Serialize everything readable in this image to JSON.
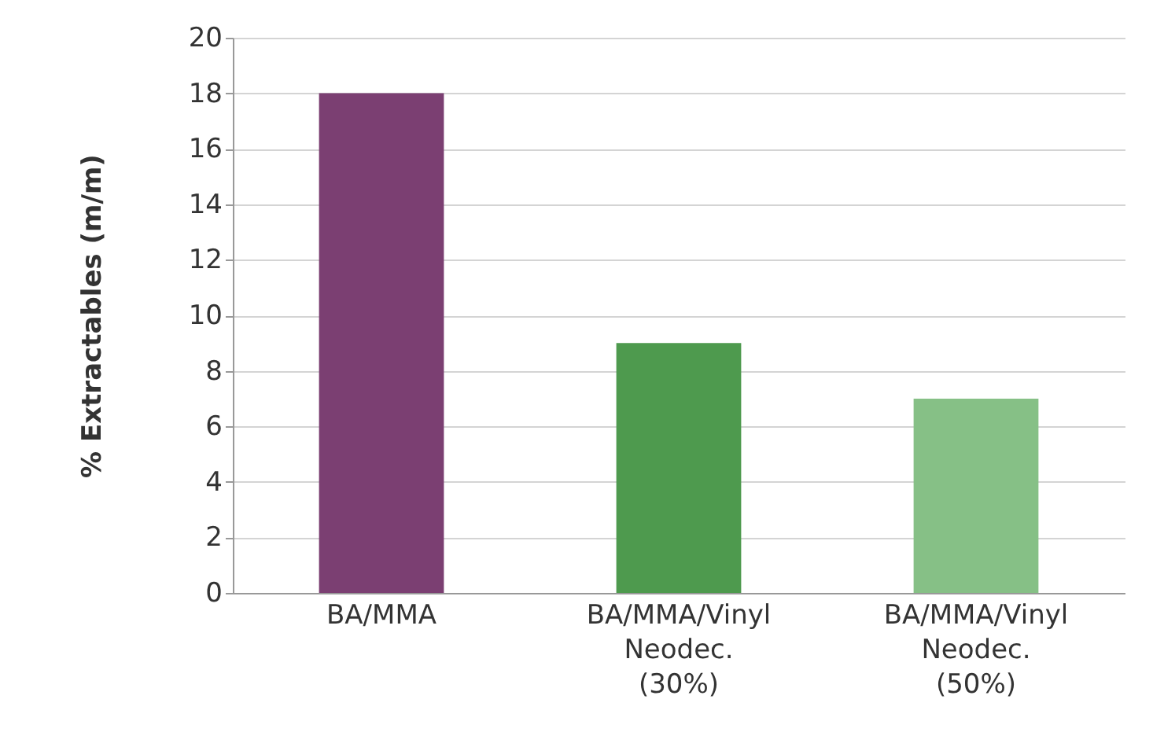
{
  "chart_data": {
    "type": "bar",
    "ylabel": "% Extractables (m/m)",
    "categories": [
      "BA/MMA",
      "BA/MMA/Vinyl Neodec. (30%)",
      "BA/MMA/Vinyl Neodec. (50%)"
    ],
    "values": [
      18,
      9,
      7
    ],
    "colors": [
      "#7b3f72",
      "#4e9a4e",
      "#86c086"
    ],
    "ylim": [
      0,
      20
    ],
    "yticks": [
      0,
      2,
      4,
      6,
      8,
      10,
      12,
      14,
      16,
      18,
      20
    ],
    "grid": "y"
  }
}
